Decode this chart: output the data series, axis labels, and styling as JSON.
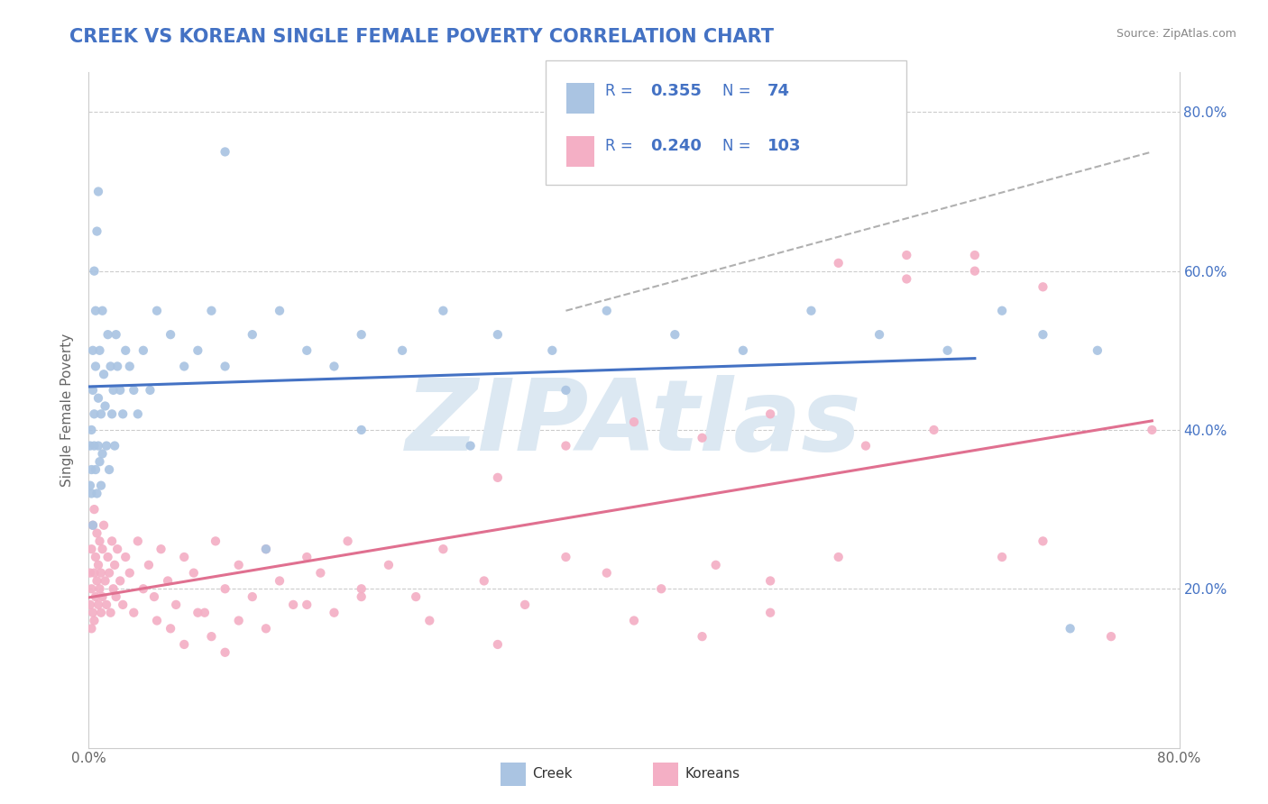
{
  "title": "CREEK VS KOREAN SINGLE FEMALE POVERTY CORRELATION CHART",
  "source_text": "Source: ZipAtlas.com",
  "ylabel": "Single Female Poverty",
  "xlim": [
    0.0,
    0.8
  ],
  "ylim": [
    0.0,
    0.85
  ],
  "ytick_right_labels": [
    "20.0%",
    "40.0%",
    "60.0%",
    "80.0%"
  ],
  "ytick_right_values": [
    0.2,
    0.4,
    0.6,
    0.8
  ],
  "creek_R": 0.355,
  "creek_N": 74,
  "korean_R": 0.24,
  "korean_N": 103,
  "creek_color": "#aac4e2",
  "korean_color": "#f4afc5",
  "creek_line_color": "#4472c4",
  "korean_line_color": "#e07090",
  "dashed_line_color": "#b0b0b0",
  "title_color": "#4472c4",
  "legend_text_color": "#4472c4",
  "watermark_text": "ZIPAtlas",
  "watermark_color": "#dce8f2",
  "background_color": "#ffffff",
  "creek_x": [
    0.001,
    0.001,
    0.002,
    0.002,
    0.002,
    0.003,
    0.003,
    0.003,
    0.004,
    0.004,
    0.004,
    0.005,
    0.005,
    0.005,
    0.006,
    0.006,
    0.007,
    0.007,
    0.007,
    0.008,
    0.008,
    0.009,
    0.009,
    0.01,
    0.01,
    0.011,
    0.012,
    0.013,
    0.014,
    0.015,
    0.016,
    0.017,
    0.018,
    0.019,
    0.02,
    0.021,
    0.023,
    0.025,
    0.027,
    0.03,
    0.033,
    0.036,
    0.04,
    0.045,
    0.05,
    0.06,
    0.07,
    0.08,
    0.09,
    0.1,
    0.12,
    0.14,
    0.16,
    0.18,
    0.2,
    0.23,
    0.26,
    0.3,
    0.34,
    0.38,
    0.43,
    0.48,
    0.53,
    0.58,
    0.63,
    0.67,
    0.7,
    0.72,
    0.74,
    0.1,
    0.13,
    0.2,
    0.28,
    0.35
  ],
  "creek_y": [
    0.33,
    0.38,
    0.32,
    0.4,
    0.35,
    0.5,
    0.45,
    0.28,
    0.6,
    0.38,
    0.42,
    0.55,
    0.35,
    0.48,
    0.65,
    0.32,
    0.7,
    0.38,
    0.44,
    0.36,
    0.5,
    0.42,
    0.33,
    0.55,
    0.37,
    0.47,
    0.43,
    0.38,
    0.52,
    0.35,
    0.48,
    0.42,
    0.45,
    0.38,
    0.52,
    0.48,
    0.45,
    0.42,
    0.5,
    0.48,
    0.45,
    0.42,
    0.5,
    0.45,
    0.55,
    0.52,
    0.48,
    0.5,
    0.55,
    0.48,
    0.52,
    0.55,
    0.5,
    0.48,
    0.52,
    0.5,
    0.55,
    0.52,
    0.5,
    0.55,
    0.52,
    0.5,
    0.55,
    0.52,
    0.5,
    0.55,
    0.52,
    0.15,
    0.5,
    0.75,
    0.25,
    0.4,
    0.38,
    0.45
  ],
  "korean_x": [
    0.001,
    0.001,
    0.002,
    0.002,
    0.002,
    0.003,
    0.003,
    0.004,
    0.004,
    0.004,
    0.005,
    0.005,
    0.006,
    0.006,
    0.007,
    0.007,
    0.008,
    0.008,
    0.009,
    0.009,
    0.01,
    0.01,
    0.011,
    0.012,
    0.013,
    0.014,
    0.015,
    0.016,
    0.017,
    0.018,
    0.019,
    0.02,
    0.021,
    0.023,
    0.025,
    0.027,
    0.03,
    0.033,
    0.036,
    0.04,
    0.044,
    0.048,
    0.053,
    0.058,
    0.064,
    0.07,
    0.077,
    0.085,
    0.093,
    0.1,
    0.11,
    0.12,
    0.13,
    0.14,
    0.15,
    0.16,
    0.17,
    0.18,
    0.19,
    0.2,
    0.22,
    0.24,
    0.26,
    0.29,
    0.32,
    0.35,
    0.38,
    0.42,
    0.46,
    0.5,
    0.55,
    0.6,
    0.65,
    0.7,
    0.75,
    0.78,
    0.3,
    0.35,
    0.4,
    0.45,
    0.5,
    0.55,
    0.6,
    0.65,
    0.7,
    0.57,
    0.62,
    0.67,
    0.4,
    0.45,
    0.5,
    0.2,
    0.25,
    0.3,
    0.1,
    0.13,
    0.16,
    0.08,
    0.06,
    0.05,
    0.07,
    0.09,
    0.11
  ],
  "korean_y": [
    0.18,
    0.22,
    0.15,
    0.25,
    0.2,
    0.17,
    0.28,
    0.22,
    0.16,
    0.3,
    0.19,
    0.24,
    0.21,
    0.27,
    0.18,
    0.23,
    0.2,
    0.26,
    0.17,
    0.22,
    0.25,
    0.19,
    0.28,
    0.21,
    0.18,
    0.24,
    0.22,
    0.17,
    0.26,
    0.2,
    0.23,
    0.19,
    0.25,
    0.21,
    0.18,
    0.24,
    0.22,
    0.17,
    0.26,
    0.2,
    0.23,
    0.19,
    0.25,
    0.21,
    0.18,
    0.24,
    0.22,
    0.17,
    0.26,
    0.2,
    0.23,
    0.19,
    0.25,
    0.21,
    0.18,
    0.24,
    0.22,
    0.17,
    0.26,
    0.2,
    0.23,
    0.19,
    0.25,
    0.21,
    0.18,
    0.24,
    0.22,
    0.2,
    0.23,
    0.21,
    0.24,
    0.62,
    0.6,
    0.58,
    0.14,
    0.4,
    0.34,
    0.38,
    0.41,
    0.39,
    0.42,
    0.61,
    0.59,
    0.62,
    0.26,
    0.38,
    0.4,
    0.24,
    0.16,
    0.14,
    0.17,
    0.19,
    0.16,
    0.13,
    0.12,
    0.15,
    0.18,
    0.17,
    0.15,
    0.16,
    0.13,
    0.14,
    0.16
  ]
}
